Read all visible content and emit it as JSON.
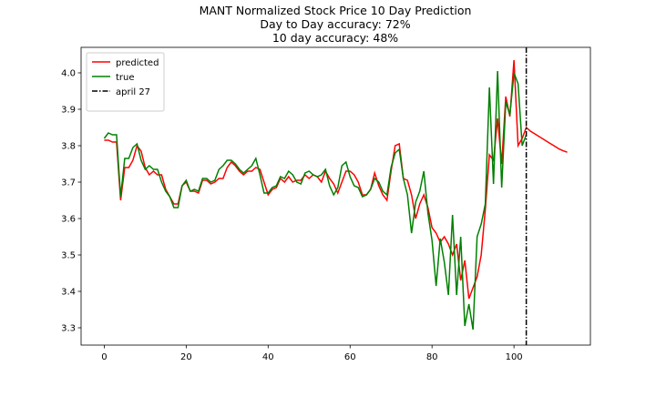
{
  "chart_data": {
    "type": "line",
    "title": [
      "MANT Normalized Stock Price 10 Day Prediction",
      "Day to Day accuracy: 72%",
      "10 day accuracy: 48%"
    ],
    "x": [
      0,
      1,
      2,
      3,
      4,
      5,
      6,
      7,
      8,
      9,
      10,
      11,
      12,
      13,
      14,
      15,
      16,
      17,
      18,
      19,
      20,
      21,
      22,
      23,
      24,
      25,
      26,
      27,
      28,
      29,
      30,
      31,
      32,
      33,
      34,
      35,
      36,
      37,
      38,
      39,
      40,
      41,
      42,
      43,
      44,
      45,
      46,
      47,
      48,
      49,
      50,
      51,
      52,
      53,
      54,
      55,
      56,
      57,
      58,
      59,
      60,
      61,
      62,
      63,
      64,
      65,
      66,
      67,
      68,
      69,
      70,
      71,
      72,
      73,
      74,
      75,
      76,
      77,
      78,
      79,
      80,
      81,
      82,
      83,
      84,
      85,
      86,
      87,
      88,
      89,
      90,
      91,
      92,
      93,
      94,
      95,
      96,
      97,
      98,
      99,
      100,
      101,
      102,
      103,
      104,
      105,
      106,
      107,
      108,
      109,
      110,
      111,
      112,
      113
    ],
    "series": [
      {
        "name": "predicted",
        "color": "#ff0000",
        "values": [
          3.815,
          3.815,
          3.81,
          3.81,
          3.65,
          3.74,
          3.74,
          3.76,
          3.8,
          3.785,
          3.74,
          3.72,
          3.73,
          3.72,
          3.72,
          3.68,
          3.66,
          3.64,
          3.64,
          3.69,
          3.7,
          3.675,
          3.675,
          3.67,
          3.705,
          3.705,
          3.695,
          3.7,
          3.71,
          3.71,
          3.74,
          3.755,
          3.745,
          3.73,
          3.72,
          3.73,
          3.73,
          3.74,
          3.735,
          3.7,
          3.665,
          3.68,
          3.685,
          3.71,
          3.7,
          3.715,
          3.7,
          3.705,
          3.705,
          3.72,
          3.71,
          3.72,
          3.715,
          3.7,
          3.73,
          3.71,
          3.695,
          3.67,
          3.7,
          3.73,
          3.73,
          3.72,
          3.7,
          3.665,
          3.665,
          3.68,
          3.725,
          3.69,
          3.665,
          3.65,
          3.73,
          3.8,
          3.805,
          3.71,
          3.705,
          3.665,
          3.6,
          3.64,
          3.665,
          3.63,
          3.575,
          3.56,
          3.535,
          3.55,
          3.53,
          3.5,
          3.53,
          3.43,
          3.485,
          3.38,
          3.41,
          3.44,
          3.5,
          3.625,
          3.775,
          3.76,
          3.875,
          3.75,
          3.935,
          3.88,
          4.035,
          3.8,
          3.82,
          3.85,
          3.84,
          3.833,
          3.826,
          3.819,
          3.812,
          3.805,
          3.798,
          3.791,
          3.786,
          3.782
        ]
      },
      {
        "name": "true",
        "color": "#008000",
        "values": [
          3.82,
          3.835,
          3.83,
          3.83,
          3.66,
          3.765,
          3.765,
          3.795,
          3.805,
          3.76,
          3.735,
          3.745,
          3.735,
          3.735,
          3.7,
          3.675,
          3.66,
          3.63,
          3.63,
          3.69,
          3.705,
          3.675,
          3.68,
          3.675,
          3.71,
          3.71,
          3.7,
          3.705,
          3.735,
          3.745,
          3.76,
          3.76,
          3.75,
          3.735,
          3.725,
          3.735,
          3.745,
          3.765,
          3.72,
          3.67,
          3.67,
          3.685,
          3.69,
          3.715,
          3.71,
          3.73,
          3.72,
          3.7,
          3.695,
          3.725,
          3.73,
          3.72,
          3.715,
          3.72,
          3.735,
          3.69,
          3.665,
          3.685,
          3.745,
          3.755,
          3.715,
          3.69,
          3.685,
          3.66,
          3.665,
          3.68,
          3.71,
          3.7,
          3.675,
          3.665,
          3.74,
          3.78,
          3.79,
          3.71,
          3.665,
          3.56,
          3.645,
          3.675,
          3.73,
          3.615,
          3.54,
          3.415,
          3.545,
          3.48,
          3.39,
          3.61,
          3.39,
          3.55,
          3.305,
          3.365,
          3.295,
          3.55,
          3.585,
          3.64,
          3.96,
          3.695,
          4.005,
          3.685,
          3.92,
          3.885,
          4.0,
          3.97,
          3.8,
          3.83,
          null,
          null,
          null,
          null,
          null,
          null,
          null,
          null,
          null,
          null
        ]
      }
    ],
    "vline": {
      "name": "april 27",
      "x": 103,
      "color": "#000000"
    },
    "xlim": [
      -5.65,
      118.65
    ],
    "xticks": [
      0,
      20,
      40,
      60,
      80,
      100
    ],
    "ylim": [
      3.2525,
      4.07
    ],
    "yticks": [
      3.3,
      3.4,
      3.5,
      3.6,
      3.7,
      3.8,
      3.9,
      {
        "value": 4,
        "label": "4.0"
      }
    ],
    "grid": false,
    "legend": "upper-left"
  }
}
